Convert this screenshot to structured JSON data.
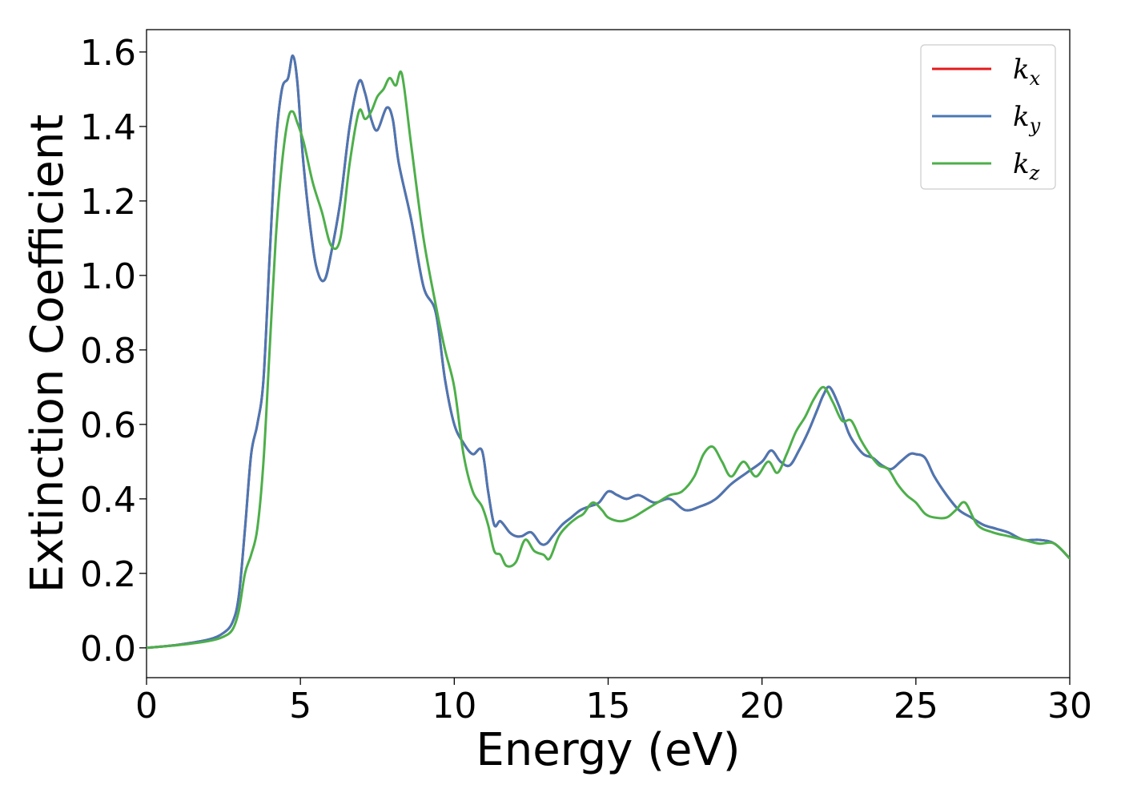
{
  "chart_data": {
    "type": "line",
    "title": "",
    "xlabel": "Energy (eV)",
    "ylabel": "Extinction Coefficient",
    "xlim": [
      0,
      30
    ],
    "ylim": [
      -0.08,
      1.66
    ],
    "xticks": [
      0,
      5,
      10,
      15,
      20,
      25,
      30
    ],
    "xtick_labels": [
      "0",
      "5",
      "10",
      "15",
      "20",
      "25",
      "30"
    ],
    "yticks": [
      0.0,
      0.2,
      0.4,
      0.6,
      0.8,
      1.0,
      1.2,
      1.4,
      1.6
    ],
    "ytick_labels": [
      "0.0",
      "0.2",
      "0.4",
      "0.6",
      "0.8",
      "1.0",
      "1.2",
      "1.4",
      "1.6"
    ],
    "grid": false,
    "legend_position": "top-right",
    "series": [
      {
        "name": "k",
        "subscript": "x",
        "color": "#e41a1c",
        "x": [
          0,
          1,
          2,
          2.5,
          2.8,
          3.0,
          3.2,
          3.4,
          3.6,
          3.8,
          4.0,
          4.2,
          4.4,
          4.6,
          4.75,
          4.9,
          5.1,
          5.4,
          5.6,
          5.8,
          6.0,
          6.3,
          6.6,
          6.9,
          7.1,
          7.3,
          7.5,
          7.8,
          8.0,
          8.2,
          8.6,
          9.0,
          9.4,
          9.7,
          10.0,
          10.3,
          10.6,
          10.9,
          11.1,
          11.3,
          11.5,
          11.8,
          12.0,
          12.2,
          12.5,
          12.8,
          13.0,
          13.2,
          13.5,
          13.8,
          14.1,
          14.4,
          14.7,
          15.0,
          15.3,
          15.6,
          16.0,
          16.5,
          17.0,
          17.5,
          18.0,
          18.5,
          19.0,
          19.5,
          20.0,
          20.3,
          20.6,
          20.9,
          21.2,
          21.5,
          21.8,
          22.0,
          22.2,
          22.5,
          22.8,
          23.0,
          23.3,
          23.6,
          23.9,
          24.2,
          24.5,
          24.8,
          25.0,
          25.3,
          25.6,
          26.0,
          26.4,
          26.8,
          27.2,
          27.6,
          28.0,
          28.5,
          29.0,
          29.5,
          30.0
        ],
        "y": [
          0.0,
          0.008,
          0.022,
          0.04,
          0.07,
          0.14,
          0.32,
          0.52,
          0.6,
          0.72,
          1.05,
          1.35,
          1.5,
          1.53,
          1.59,
          1.52,
          1.3,
          1.08,
          1.0,
          0.99,
          1.06,
          1.2,
          1.4,
          1.52,
          1.49,
          1.42,
          1.39,
          1.45,
          1.42,
          1.3,
          1.15,
          0.97,
          0.9,
          0.72,
          0.6,
          0.55,
          0.52,
          0.53,
          0.42,
          0.33,
          0.34,
          0.31,
          0.3,
          0.3,
          0.31,
          0.28,
          0.28,
          0.3,
          0.33,
          0.35,
          0.37,
          0.38,
          0.39,
          0.42,
          0.41,
          0.4,
          0.41,
          0.39,
          0.4,
          0.37,
          0.38,
          0.4,
          0.44,
          0.47,
          0.5,
          0.53,
          0.5,
          0.49,
          0.53,
          0.58,
          0.64,
          0.68,
          0.7,
          0.65,
          0.58,
          0.55,
          0.52,
          0.51,
          0.49,
          0.48,
          0.5,
          0.52,
          0.52,
          0.51,
          0.46,
          0.41,
          0.37,
          0.35,
          0.33,
          0.32,
          0.31,
          0.29,
          0.29,
          0.28,
          0.24
        ]
      },
      {
        "name": "k",
        "subscript": "y",
        "color": "#4a77b4",
        "x": [
          0,
          1,
          2,
          2.5,
          2.8,
          3.0,
          3.2,
          3.4,
          3.6,
          3.8,
          4.0,
          4.2,
          4.4,
          4.6,
          4.75,
          4.9,
          5.1,
          5.4,
          5.6,
          5.8,
          6.0,
          6.3,
          6.6,
          6.9,
          7.1,
          7.3,
          7.5,
          7.8,
          8.0,
          8.2,
          8.6,
          9.0,
          9.4,
          9.7,
          10.0,
          10.3,
          10.6,
          10.9,
          11.1,
          11.3,
          11.5,
          11.8,
          12.0,
          12.2,
          12.5,
          12.8,
          13.0,
          13.2,
          13.5,
          13.8,
          14.1,
          14.4,
          14.7,
          15.0,
          15.3,
          15.6,
          16.0,
          16.5,
          17.0,
          17.5,
          18.0,
          18.5,
          19.0,
          19.5,
          20.0,
          20.3,
          20.6,
          20.9,
          21.2,
          21.5,
          21.8,
          22.0,
          22.2,
          22.5,
          22.8,
          23.0,
          23.3,
          23.6,
          23.9,
          24.2,
          24.5,
          24.8,
          25.0,
          25.3,
          25.6,
          26.0,
          26.4,
          26.8,
          27.2,
          27.6,
          28.0,
          28.5,
          29.0,
          29.5,
          30.0
        ],
        "y": [
          0.0,
          0.008,
          0.022,
          0.04,
          0.07,
          0.14,
          0.32,
          0.52,
          0.6,
          0.72,
          1.05,
          1.35,
          1.5,
          1.53,
          1.59,
          1.52,
          1.3,
          1.08,
          1.0,
          0.99,
          1.06,
          1.2,
          1.4,
          1.52,
          1.49,
          1.42,
          1.39,
          1.45,
          1.42,
          1.3,
          1.15,
          0.97,
          0.9,
          0.72,
          0.6,
          0.55,
          0.52,
          0.53,
          0.42,
          0.33,
          0.34,
          0.31,
          0.3,
          0.3,
          0.31,
          0.28,
          0.28,
          0.3,
          0.33,
          0.35,
          0.37,
          0.38,
          0.39,
          0.42,
          0.41,
          0.4,
          0.41,
          0.39,
          0.4,
          0.37,
          0.38,
          0.4,
          0.44,
          0.47,
          0.5,
          0.53,
          0.5,
          0.49,
          0.53,
          0.58,
          0.64,
          0.68,
          0.7,
          0.65,
          0.58,
          0.55,
          0.52,
          0.51,
          0.49,
          0.48,
          0.5,
          0.52,
          0.52,
          0.51,
          0.46,
          0.41,
          0.37,
          0.35,
          0.33,
          0.32,
          0.31,
          0.29,
          0.29,
          0.28,
          0.24
        ]
      },
      {
        "name": "k",
        "subscript": "z",
        "color": "#4daf4a",
        "x": [
          0,
          1,
          2,
          2.5,
          2.8,
          3.0,
          3.2,
          3.4,
          3.6,
          3.8,
          4.0,
          4.2,
          4.4,
          4.6,
          4.75,
          4.9,
          5.1,
          5.4,
          5.7,
          6.0,
          6.3,
          6.6,
          6.9,
          7.1,
          7.3,
          7.5,
          7.7,
          7.9,
          8.1,
          8.3,
          8.6,
          9.0,
          9.4,
          9.7,
          10.0,
          10.3,
          10.6,
          10.9,
          11.1,
          11.3,
          11.5,
          11.7,
          12.0,
          12.3,
          12.6,
          12.9,
          13.1,
          13.4,
          13.7,
          14.0,
          14.2,
          14.5,
          14.8,
          15.0,
          15.4,
          15.8,
          16.2,
          16.6,
          17.0,
          17.4,
          17.8,
          18.1,
          18.4,
          18.7,
          19.0,
          19.4,
          19.8,
          20.2,
          20.5,
          20.8,
          21.1,
          21.4,
          21.7,
          22.0,
          22.3,
          22.6,
          22.9,
          23.2,
          23.5,
          23.8,
          24.1,
          24.4,
          24.7,
          25.0,
          25.3,
          25.6,
          26.0,
          26.3,
          26.6,
          27.0,
          27.5,
          28.0,
          28.5,
          29.0,
          29.5,
          30.0
        ],
        "y": [
          0.0,
          0.007,
          0.018,
          0.03,
          0.05,
          0.1,
          0.2,
          0.25,
          0.32,
          0.5,
          0.8,
          1.1,
          1.3,
          1.42,
          1.44,
          1.41,
          1.36,
          1.25,
          1.17,
          1.08,
          1.1,
          1.3,
          1.44,
          1.42,
          1.44,
          1.48,
          1.5,
          1.53,
          1.51,
          1.54,
          1.35,
          1.1,
          0.92,
          0.8,
          0.7,
          0.52,
          0.42,
          0.38,
          0.33,
          0.26,
          0.25,
          0.22,
          0.23,
          0.29,
          0.26,
          0.25,
          0.24,
          0.3,
          0.33,
          0.35,
          0.36,
          0.39,
          0.37,
          0.35,
          0.34,
          0.35,
          0.37,
          0.39,
          0.41,
          0.42,
          0.46,
          0.52,
          0.54,
          0.5,
          0.46,
          0.5,
          0.46,
          0.5,
          0.47,
          0.52,
          0.58,
          0.62,
          0.67,
          0.7,
          0.66,
          0.61,
          0.61,
          0.56,
          0.52,
          0.49,
          0.48,
          0.44,
          0.41,
          0.39,
          0.36,
          0.35,
          0.35,
          0.37,
          0.39,
          0.33,
          0.31,
          0.3,
          0.29,
          0.28,
          0.28,
          0.24
        ]
      }
    ]
  }
}
